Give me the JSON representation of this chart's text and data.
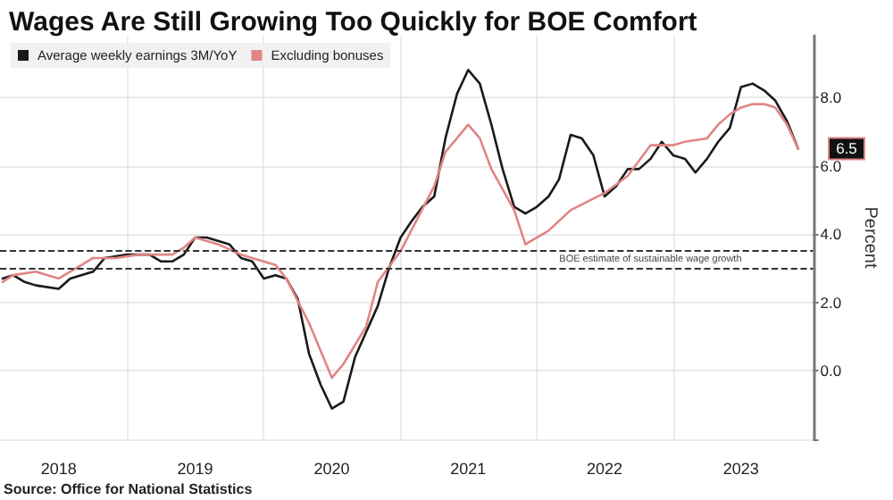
{
  "chart_data": {
    "type": "line",
    "title": "Wages Are Still Growing Too Quickly for BOE Comfort",
    "ylabel": "Percent",
    "series": [
      {
        "name": "Average weekly earnings 3M/YoY",
        "color": "#1a1a1a",
        "x": [
          "2018-02",
          "2018-03",
          "2018-04",
          "2018-05",
          "2018-07",
          "2018-08",
          "2018-10",
          "2018-11",
          "2019-01",
          "2019-02",
          "2019-03",
          "2019-04",
          "2019-05",
          "2019-06",
          "2019-07",
          "2019-08",
          "2019-10",
          "2019-11",
          "2019-12",
          "2020-01",
          "2020-02",
          "2020-03",
          "2020-04",
          "2020-05",
          "2020-06",
          "2020-07",
          "2020-08",
          "2020-09",
          "2020-11",
          "2020-12",
          "2021-01",
          "2021-02",
          "2021-03",
          "2021-04",
          "2021-05",
          "2021-06",
          "2021-07",
          "2021-08",
          "2021-09",
          "2021-10",
          "2021-11",
          "2021-12",
          "2022-01",
          "2022-02",
          "2022-03",
          "2022-04",
          "2022-05",
          "2022-06",
          "2022-07",
          "2022-08",
          "2022-09",
          "2022-10",
          "2022-11",
          "2022-12",
          "2023-01",
          "2023-02",
          "2023-03",
          "2023-04",
          "2023-05",
          "2023-06",
          "2023-07",
          "2023-08",
          "2023-09",
          "2023-10",
          "2023-11",
          "2023-12"
        ],
        "values": [
          2.7,
          2.8,
          2.6,
          2.5,
          2.4,
          2.7,
          2.9,
          3.3,
          3.4,
          3.4,
          3.4,
          3.2,
          3.2,
          3.4,
          3.9,
          3.9,
          3.7,
          3.3,
          3.2,
          2.7,
          2.8,
          2.7,
          2.1,
          0.5,
          -0.4,
          -1.1,
          -0.9,
          0.4,
          1.9,
          3.0,
          3.9,
          4.4,
          4.8,
          5.1,
          6.8,
          8.1,
          8.8,
          8.4,
          7.2,
          5.9,
          4.8,
          4.6,
          4.8,
          5.1,
          5.6,
          6.9,
          6.8,
          6.3,
          5.1,
          5.4,
          5.9,
          5.9,
          6.2,
          6.7,
          6.3,
          6.2,
          5.8,
          6.2,
          6.7,
          7.1,
          8.3,
          8.4,
          8.2,
          7.9,
          7.3,
          6.5
        ]
      },
      {
        "name": "Excluding bonuses",
        "color": "#e08585",
        "x": [
          "2018-02",
          "2018-03",
          "2018-05",
          "2018-07",
          "2018-09",
          "2018-10",
          "2018-12",
          "2019-02",
          "2019-05",
          "2019-06",
          "2019-07",
          "2019-09",
          "2019-11",
          "2020-02",
          "2020-03",
          "2020-05",
          "2020-07",
          "2020-08",
          "2020-10",
          "2020-11",
          "2021-01",
          "2021-04",
          "2021-05",
          "2021-07",
          "2021-08",
          "2021-09",
          "2021-11",
          "2021-12",
          "2022-02",
          "2022-04",
          "2022-07",
          "2022-09",
          "2022-11",
          "2023-01",
          "2023-02",
          "2023-04",
          "2023-05",
          "2023-06",
          "2023-07",
          "2023-08",
          "2023-09",
          "2023-10",
          "2023-11",
          "2023-12"
        ],
        "values": [
          2.6,
          2.8,
          2.9,
          2.7,
          3.1,
          3.3,
          3.3,
          3.4,
          3.4,
          3.6,
          3.9,
          3.7,
          3.4,
          3.1,
          2.7,
          1.4,
          -0.2,
          0.2,
          1.3,
          2.6,
          3.5,
          5.4,
          6.4,
          7.2,
          6.8,
          5.9,
          4.7,
          3.7,
          4.1,
          4.7,
          5.2,
          5.7,
          6.6,
          6.6,
          6.7,
          6.8,
          7.2,
          7.5,
          7.7,
          7.8,
          7.8,
          7.7,
          7.2,
          6.5
        ]
      }
    ],
    "xlim": [
      "2018-01-25",
      "2024-01-10"
    ],
    "xticks": [
      {
        "value": "2018-07-01",
        "label": "2018"
      },
      {
        "value": "2019-01-01",
        "label": null
      },
      {
        "value": "2019-07-01",
        "label": "2019"
      },
      {
        "value": "2020-01-01",
        "label": null
      },
      {
        "value": "2020-07-01",
        "label": "2020"
      },
      {
        "value": "2021-01-01",
        "label": null
      },
      {
        "value": "2021-07-01",
        "label": "2021"
      },
      {
        "value": "2022-01-01",
        "label": null
      },
      {
        "value": "2022-07-01",
        "label": "2022"
      },
      {
        "value": "2023-01-01",
        "label": null
      },
      {
        "value": "2023-07-01",
        "label": "2023"
      }
    ],
    "ylim": [
      -2,
      9.8
    ],
    "yticks": [
      {
        "value": -2,
        "label": null
      },
      {
        "value": 0,
        "label": "0.0"
      },
      {
        "value": 2,
        "label": "2.0"
      },
      {
        "value": 4,
        "label": "4.0"
      },
      {
        "value": 6,
        "label": "6.0"
      },
      {
        "value": 8,
        "label": "8.0"
      }
    ],
    "ref_lines": [
      {
        "axis": "y",
        "value": 3.5,
        "label": "BOE estimate of sustainable wage growth",
        "line_style": "dashed",
        "color": "#333333"
      },
      {
        "axis": "y",
        "value": 3.0,
        "label": null,
        "line_style": "dashed",
        "color": "#333333"
      }
    ],
    "annotations": [
      {
        "text": "6.5",
        "x": "2023-12",
        "y": 6.5
      },
      "Source: Office for National Statistics"
    ],
    "grid": true,
    "legend": "top left",
    "marker": "none",
    "line_style": "solid"
  }
}
